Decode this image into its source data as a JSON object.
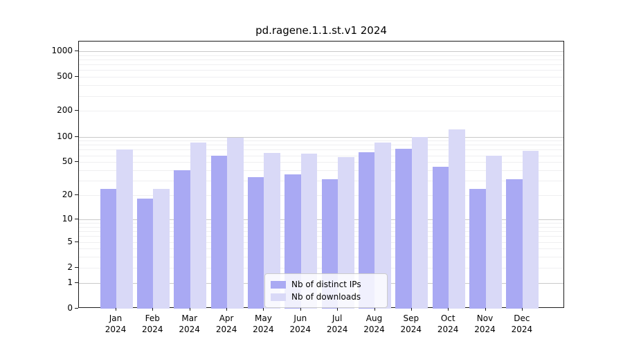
{
  "title": "pd.ragene.1.1.st.v1 2024",
  "colors": {
    "ips": "#a9a9f3",
    "downloads": "#d9d9f7",
    "grid_major": "#c9c9c9",
    "grid_minor": "#efeff1",
    "axis": "#1a1a1a"
  },
  "legend": {
    "items": [
      {
        "label": "Nb of distinct IPs",
        "series": "ips"
      },
      {
        "label": "Nb of downloads",
        "series": "downloads"
      }
    ]
  },
  "chart_data": {
    "type": "bar",
    "title": "pd.ragene.1.1.st.v1 2024",
    "categories": [
      "Jan 2024",
      "Feb 2024",
      "Mar 2024",
      "Apr 2024",
      "May 2024",
      "Jun 2024",
      "Jul 2024",
      "Aug 2024",
      "Sep 2024",
      "Oct 2024",
      "Nov 2024",
      "Dec 2024"
    ],
    "x_tick_line1": [
      "Jan",
      "Feb",
      "Mar",
      "Apr",
      "May",
      "Jun",
      "Jul",
      "Aug",
      "Sep",
      "Oct",
      "Nov",
      "Dec"
    ],
    "x_tick_line2": "2024",
    "series": [
      {
        "name": "Nb of distinct IPs",
        "color": "#a9a9f3",
        "values": [
          24,
          18,
          40,
          60,
          33,
          36,
          31,
          66,
          72,
          44,
          24,
          31
        ]
      },
      {
        "name": "Nb of downloads",
        "color": "#d9d9f7",
        "values": [
          71,
          24,
          85,
          97,
          64,
          63,
          57,
          85,
          100,
          121,
          60,
          68
        ]
      }
    ],
    "xlabel": "",
    "ylabel": "",
    "y_ticks": [
      0,
      1,
      2,
      5,
      10,
      20,
      50,
      100,
      200,
      500,
      1000
    ],
    "y_scale": "log1p",
    "y_axis_max": 1296,
    "grid": "on",
    "legend_position": "lower center"
  }
}
